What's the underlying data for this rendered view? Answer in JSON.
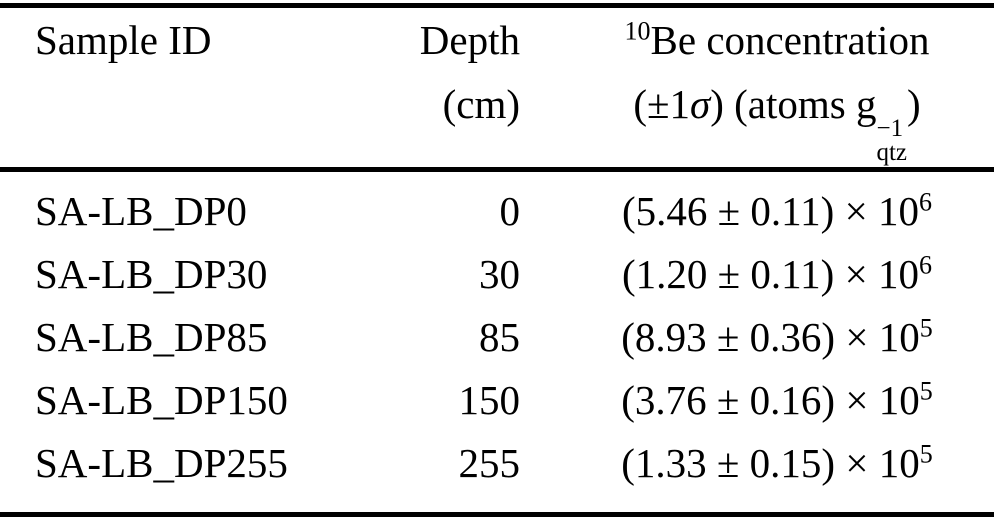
{
  "colors": {
    "background": "#ffffff",
    "text": "#000000",
    "rule": "#000000"
  },
  "header": {
    "col1": "Sample ID",
    "col2_line1": "Depth",
    "col2_line2": "(cm)",
    "col3_isotope_sup": "10",
    "col3_line1": "Be concentration",
    "col3_line2_pre": "(±1",
    "col3_line2_sigma": "σ",
    "col3_line2_mid": ") (atoms g",
    "col3_line2_sup": "−1",
    "col3_line2_sub": "qtz",
    "col3_line2_post": ")"
  },
  "rows": [
    {
      "sample_id": "SA-LB_DP0",
      "depth": "0",
      "conc": "(5.46 ± 0.11) × 10",
      "exp": "6"
    },
    {
      "sample_id": "SA-LB_DP30",
      "depth": "30",
      "conc": "(1.20 ± 0.11) × 10",
      "exp": "6"
    },
    {
      "sample_id": "SA-LB_DP85",
      "depth": "85",
      "conc": "(8.93 ± 0.36) × 10",
      "exp": "5"
    },
    {
      "sample_id": "SA-LB_DP150",
      "depth": "150",
      "conc": "(3.76 ± 0.16) × 10",
      "exp": "5"
    },
    {
      "sample_id": "SA-LB_DP255",
      "depth": "255",
      "conc": "(1.33 ± 0.15) × 10",
      "exp": "5"
    }
  ]
}
